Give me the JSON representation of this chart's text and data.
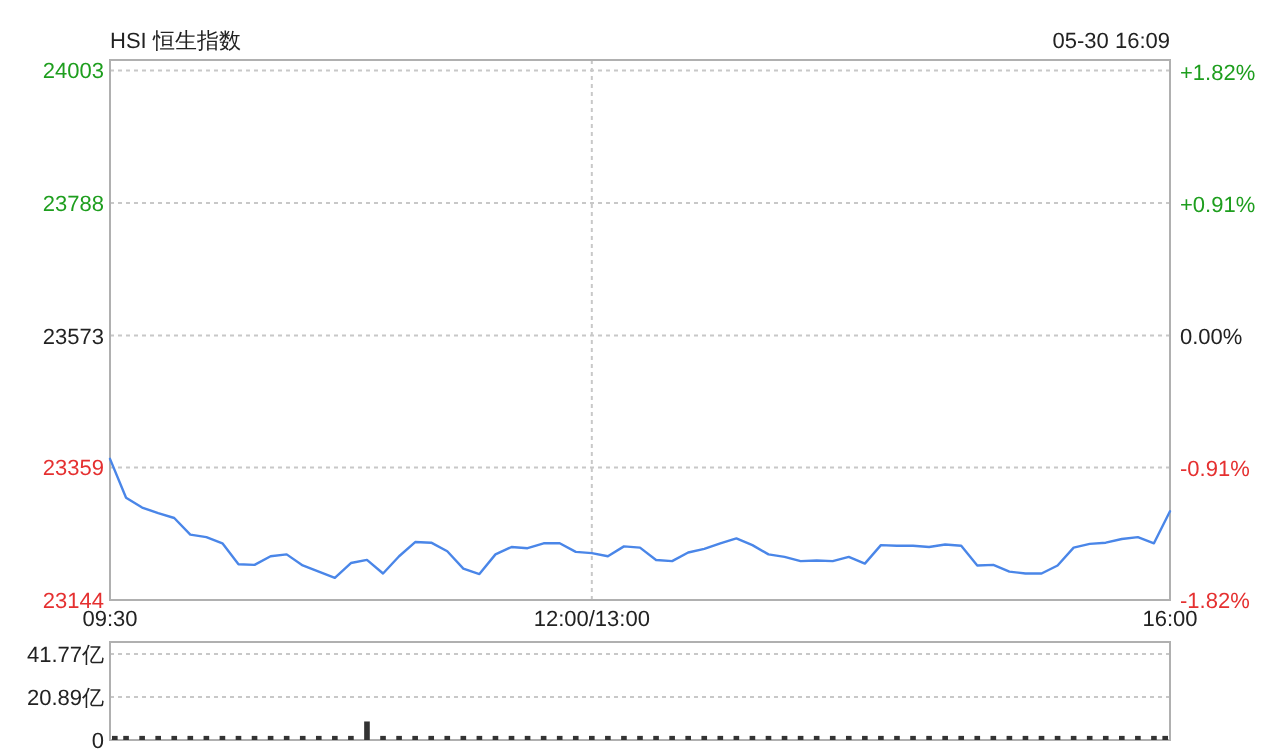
{
  "chart_data": [
    {
      "type": "line",
      "title": "HSI 恒生指数",
      "annotations": [
        "05-30 16:09"
      ],
      "grid": true,
      "categories": [
        "09:30",
        null,
        null,
        null,
        null,
        null,
        null,
        null,
        null,
        null,
        null,
        null,
        null,
        null,
        null,
        null,
        null,
        null,
        null,
        null,
        null,
        null,
        null,
        null,
        null,
        null,
        null,
        null,
        null,
        null,
        "12:00/13:00",
        null,
        null,
        null,
        null,
        null,
        null,
        null,
        null,
        null,
        null,
        null,
        null,
        null,
        null,
        null,
        null,
        null,
        null,
        null,
        null,
        null,
        null,
        null,
        null,
        null,
        null,
        null,
        null,
        null,
        null,
        null,
        null,
        null,
        null,
        null,
        "16:00"
      ],
      "ylim": [
        23144,
        24020
      ],
      "yticks": [
        24003,
        23788,
        23573,
        23359,
        23144
      ],
      "y2lim": [
        -1.82,
        1.9
      ],
      "y2ticks": [
        {
          "value": 1.82,
          "label": "+1.82%"
        },
        {
          "value": 0.91,
          "label": "+0.91%"
        },
        {
          "value": 0,
          "label": "0.00%"
        },
        {
          "value": -0.91,
          "label": "-0.91%"
        },
        {
          "value": -1.82,
          "label": "-1.82%"
        }
      ],
      "series": [
        {
          "color": "#4a86e8",
          "values": [
            23373,
            23310,
            23294,
            23285,
            23277,
            23250,
            23246,
            23236,
            23202,
            23201,
            23215,
            23218,
            23200,
            23190,
            23180,
            23204,
            23209,
            23187,
            23215,
            23238,
            23237,
            23223,
            23195,
            23186,
            23218,
            23230,
            23228,
            23236,
            23236,
            23222,
            23220,
            23215,
            23231,
            23229,
            23209,
            23207,
            23221,
            23227,
            23236,
            23244,
            23233,
            23218,
            23214,
            23207,
            23208,
            23207,
            23214,
            23203,
            23233,
            23232,
            23232,
            23230,
            23234,
            23232,
            23200,
            23201,
            23190,
            23187,
            23187,
            23200,
            23229,
            23235,
            23237,
            23243,
            23246,
            23236,
            23288
          ]
        }
      ]
    },
    {
      "type": "bar",
      "color": "#333333",
      "grid": "y",
      "tick_labels": "y",
      "categories": [
        null,
        null,
        null,
        null,
        null,
        null,
        null,
        null,
        null,
        null,
        null,
        null,
        null,
        null,
        null,
        null,
        null,
        null,
        null,
        null,
        null,
        null,
        null,
        null,
        null,
        null,
        null,
        null,
        null,
        null,
        null,
        null,
        null,
        null,
        null,
        null,
        null,
        null,
        null,
        null,
        null,
        null,
        null,
        null,
        null,
        null,
        null,
        null,
        null,
        null,
        null,
        null,
        null,
        null,
        null,
        null,
        null,
        null,
        null,
        null,
        null,
        null,
        null,
        null,
        null,
        null,
        null
      ],
      "ylim": [
        0,
        47.6
      ],
      "yticks": [
        0,
        {
          "value": 20.89,
          "label": "20.89亿"
        },
        {
          "value": 41.77,
          "label": "41.77亿"
        }
      ],
      "values": [
        2,
        2,
        2,
        2,
        2,
        2,
        2,
        2,
        2,
        2,
        2,
        2,
        2,
        2,
        2,
        2,
        9,
        2,
        2,
        2,
        2,
        2,
        2,
        2,
        2,
        2,
        2,
        2,
        2,
        2,
        2,
        2,
        2,
        2,
        2,
        2,
        2,
        2,
        2,
        2,
        2,
        2,
        2,
        2,
        2,
        2,
        2,
        2,
        2,
        2,
        2,
        2,
        2,
        2,
        2,
        2,
        2,
        2,
        2,
        2,
        2,
        2,
        2,
        2,
        2,
        2,
        2
      ]
    }
  ]
}
